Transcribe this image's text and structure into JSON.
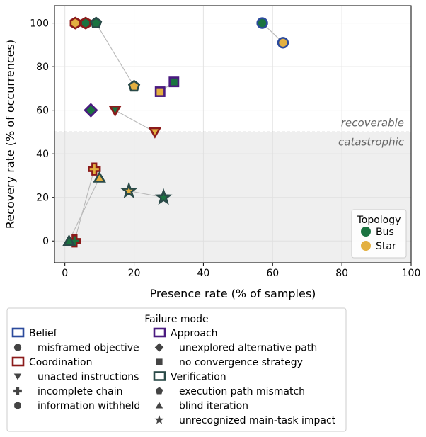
{
  "chart_data": {
    "type": "scatter",
    "xlabel": "Presence rate (% of samples)",
    "ylabel": "Recovery rate (% of occurrences)",
    "xlim": [
      -3,
      100
    ],
    "ylim": [
      -10,
      108
    ],
    "xticks": [
      0,
      20,
      40,
      60,
      80,
      100
    ],
    "yticks": [
      0,
      20,
      40,
      60,
      80,
      100
    ],
    "grid": true,
    "threshold": {
      "y": 50,
      "above_label": "recoverable",
      "below_label": "catastrophic"
    },
    "topology_legend": {
      "title": "Topology",
      "placement": "lower-right",
      "entries": [
        {
          "name": "Bus",
          "color": "#1a7340"
        },
        {
          "name": "Star",
          "color": "#e3b040"
        }
      ]
    },
    "failure_legend": {
      "title": "Failure mode",
      "placement": "below-plot",
      "columns": [
        [
          {
            "kind": "category",
            "label": "Belief",
            "edge": "#2b4a9c"
          },
          {
            "kind": "mode",
            "label": "misframed objective",
            "marker": "circle"
          },
          {
            "kind": "category",
            "label": "Coordination",
            "edge": "#8b1a1a"
          },
          {
            "kind": "mode",
            "label": "unacted instructions",
            "marker": "triangle-down"
          },
          {
            "kind": "mode",
            "label": "incomplete chain",
            "marker": "plus"
          },
          {
            "kind": "mode",
            "label": "information withheld",
            "marker": "hexagon"
          }
        ],
        [
          {
            "kind": "category",
            "label": "Approach",
            "edge": "#4a1a80"
          },
          {
            "kind": "mode",
            "label": "unexplored alternative path",
            "marker": "diamond"
          },
          {
            "kind": "mode",
            "label": "no convergence strategy",
            "marker": "square"
          },
          {
            "kind": "category",
            "label": "Verification",
            "edge": "#2a4a48"
          },
          {
            "kind": "mode",
            "label": "execution path mismatch",
            "marker": "pentagon"
          },
          {
            "kind": "mode",
            "label": "blind iteration",
            "marker": "triangle-up"
          },
          {
            "kind": "mode",
            "label": "unrecognized main-task impact",
            "marker": "star"
          }
        ]
      ]
    },
    "points": [
      {
        "mode": "information withheld",
        "category": "Coordination",
        "marker": "hexagon",
        "edge": "#8b1a1a",
        "topology": "Star",
        "x": 3,
        "y": 100
      },
      {
        "mode": "information withheld",
        "category": "Coordination",
        "marker": "hexagon",
        "edge": "#8b1a1a",
        "topology": "Bus",
        "x": 6,
        "y": 100
      },
      {
        "mode": "execution path mismatch",
        "category": "Verification",
        "marker": "pentagon",
        "edge": "#2a4a48",
        "topology": "Bus",
        "x": 9,
        "y": 100
      },
      {
        "mode": "execution path mismatch",
        "category": "Verification",
        "marker": "pentagon",
        "edge": "#2a4a48",
        "topology": "Star",
        "x": 20,
        "y": 71
      },
      {
        "mode": "misframed objective",
        "category": "Belief",
        "marker": "circle",
        "edge": "#2b4a9c",
        "topology": "Bus",
        "x": 57,
        "y": 100
      },
      {
        "mode": "misframed objective",
        "category": "Belief",
        "marker": "circle",
        "edge": "#2b4a9c",
        "topology": "Star",
        "x": 63,
        "y": 91
      },
      {
        "mode": "no convergence strategy",
        "category": "Approach",
        "marker": "square",
        "edge": "#4a1a80",
        "topology": "Star",
        "x": 27.5,
        "y": 68.5
      },
      {
        "mode": "no convergence strategy",
        "category": "Approach",
        "marker": "square",
        "edge": "#4a1a80",
        "topology": "Bus",
        "x": 31.5,
        "y": 73
      },
      {
        "mode": "unexplored alternative path",
        "category": "Approach",
        "marker": "diamond",
        "edge": "#4a1a80",
        "topology": "Bus",
        "x": 7.5,
        "y": 60
      },
      {
        "mode": "unacted instructions",
        "category": "Coordination",
        "marker": "triangle-down",
        "edge": "#8b1a1a",
        "topology": "Bus",
        "x": 14.5,
        "y": 60
      },
      {
        "mode": "unacted instructions",
        "category": "Coordination",
        "marker": "triangle-down",
        "edge": "#8b1a1a",
        "topology": "Star",
        "x": 26,
        "y": 50
      },
      {
        "mode": "incomplete chain",
        "category": "Coordination",
        "marker": "plus",
        "edge": "#8b1a1a",
        "topology": "Star",
        "x": 8.5,
        "y": 33
      },
      {
        "mode": "incomplete chain",
        "category": "Coordination",
        "marker": "plus",
        "edge": "#8b1a1a",
        "topology": "Bus",
        "x": 2.8,
        "y": 0
      },
      {
        "mode": "blind iteration",
        "category": "Verification",
        "marker": "triangle-up",
        "edge": "#2a4a48",
        "topology": "Star",
        "x": 10,
        "y": 29
      },
      {
        "mode": "blind iteration",
        "category": "Verification",
        "marker": "triangle-up",
        "edge": "#2a4a48",
        "topology": "Bus",
        "x": 1.2,
        "y": 0
      },
      {
        "mode": "unrecognized main-task impact",
        "category": "Verification",
        "marker": "star",
        "edge": "#2a4a48",
        "topology": "Star",
        "x": 18.5,
        "y": 23
      },
      {
        "mode": "unrecognized main-task impact",
        "category": "Verification",
        "marker": "star",
        "edge": "#2a4a48",
        "topology": "Bus",
        "x": 28.5,
        "y": 20
      }
    ],
    "connections": [
      [
        0,
        1
      ],
      [
        2,
        3
      ],
      [
        4,
        5
      ],
      [
        6,
        7
      ],
      [
        9,
        10
      ],
      [
        11,
        12
      ],
      [
        13,
        14
      ],
      [
        15,
        16
      ]
    ]
  }
}
